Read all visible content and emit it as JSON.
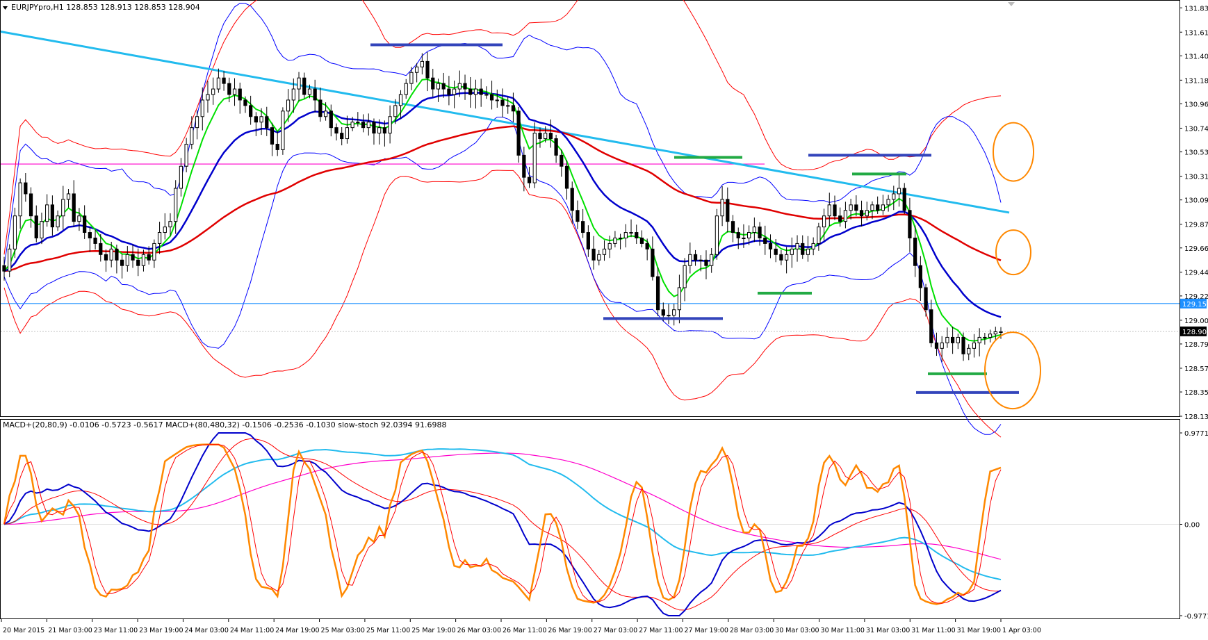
{
  "window": {
    "symbol_header": "EURJPYpro,H1  128.853 128.913 128.853 128.904",
    "dropdown_icon": "triangle-down-icon"
  },
  "indicator_header": "MACD+(20,80,9) -0.0106 -0.5723 -0.5617   MACD+(80,480,32) -0.1506 -0.2536 -0.1030   slow-stoch 92.0394 91.6988",
  "colors": {
    "background": "#ffffff",
    "bull_candle": "#ffffff",
    "bear_candle": "#000000",
    "bollinger": "#0000ff",
    "envelope": "#ff0000",
    "ma_fast": "#00e000",
    "ma_mid": "#0000cc",
    "ma_slow": "#e00000",
    "trendline": "#22bbee",
    "support_line": "#1e90ff",
    "magenta_line": "#ff00cc",
    "annotation_blue": "#3344bb",
    "annotation_green": "#22aa44",
    "annotation_circle": "#ff8800",
    "stoch": "#ff8800"
  },
  "chart_data": [
    {
      "type": "candlestick",
      "symbol": "EURJPYpro",
      "timeframe": "H1",
      "ylim": [
        128.135,
        131.9
      ],
      "y_ticks": [
        "131.835",
        "131.615",
        "131.400",
        "131.180",
        "130.965",
        "130.745",
        "130.530",
        "130.310",
        "130.095",
        "129.875",
        "129.660",
        "129.440",
        "129.225",
        "129.005",
        "128.790",
        "128.570",
        "128.355",
        "128.135"
      ],
      "x_ticks": [
        "20 Mar 2015",
        "21 Mar 03:00",
        "23 Mar 11:00",
        "23 Mar 19:00",
        "24 Mar 03:00",
        "24 Mar 11:00",
        "24 Mar 19:00",
        "25 Mar 03:00",
        "25 Mar 11:00",
        "25 Mar 19:00",
        "26 Mar 03:00",
        "26 Mar 11:00",
        "26 Mar 19:00",
        "27 Mar 03:00",
        "27 Mar 11:00",
        "27 Mar 19:00",
        "28 Mar 03:00",
        "30 Mar 03:00",
        "30 Mar 11:00",
        "31 Mar 03:00",
        "31 Mar 11:00",
        "31 Mar 19:00",
        "1 Apr 03:00"
      ],
      "price_marker_level": "129.156",
      "current_price": "128.904",
      "close_path": [
        129.45,
        129.65,
        129.95,
        130.25,
        130.15,
        129.95,
        129.75,
        129.9,
        130.05,
        129.85,
        129.95,
        130.1,
        130.15,
        129.9,
        129.95,
        129.8,
        129.75,
        129.7,
        129.6,
        129.55,
        129.65,
        129.55,
        129.5,
        129.6,
        129.55,
        129.5,
        129.6,
        129.55,
        129.7,
        129.8,
        129.85,
        129.9,
        130.2,
        130.4,
        130.6,
        130.75,
        130.85,
        131.0,
        131.05,
        131.1,
        131.2,
        131.15,
        131.05,
        131.1,
        131.0,
        130.95,
        130.85,
        130.8,
        130.85,
        130.75,
        130.6,
        130.55,
        130.9,
        131.0,
        131.1,
        131.2,
        131.05,
        131.1,
        131.0,
        130.85,
        130.9,
        130.75,
        130.7,
        130.65,
        130.75,
        130.8,
        130.8,
        130.75,
        130.8,
        130.7,
        130.75,
        130.7,
        130.85,
        130.95,
        131.05,
        131.15,
        131.25,
        131.3,
        131.35,
        131.2,
        131.1,
        131.15,
        131.1,
        131.05,
        131.1,
        131.15,
        131.1,
        131.05,
        131.1,
        131.05,
        131.05,
        131.0,
        131.0,
        130.95,
        130.95,
        130.9,
        130.5,
        130.3,
        130.25,
        130.7,
        130.65,
        130.7,
        130.65,
        130.5,
        130.4,
        130.2,
        130.0,
        129.9,
        129.8,
        129.65,
        129.55,
        129.6,
        129.65,
        129.7,
        129.75,
        129.75,
        129.8,
        129.8,
        129.75,
        129.7,
        129.65,
        129.4,
        129.1,
        129.05,
        129.05,
        129.1,
        129.3,
        129.5,
        129.6,
        129.55,
        129.55,
        129.5,
        129.6,
        129.95,
        130.1,
        129.9,
        129.8,
        129.75,
        129.75,
        129.8,
        129.85,
        129.75,
        129.7,
        129.65,
        129.6,
        129.55,
        129.6,
        129.65,
        129.7,
        129.6,
        129.65,
        129.7,
        129.85,
        129.95,
        130.05,
        129.95,
        129.9,
        130.0,
        130.05,
        130.0,
        129.95,
        130.0,
        130.05,
        130.0,
        130.05,
        130.1,
        130.15,
        130.2,
        130.0,
        129.75,
        129.5,
        129.3,
        129.1,
        128.8,
        128.75,
        128.8,
        128.85,
        128.8,
        128.85,
        128.7,
        128.75,
        128.8,
        128.85,
        128.85,
        128.88,
        128.9,
        128.9
      ],
      "hourly_range": 0.16
    },
    {
      "type": "line",
      "name_pane": "MACD+ / slow-stoch",
      "ylim": [
        -0.9771,
        0.9771
      ],
      "y_ticks": [
        "0.9771",
        "0.00",
        "-0.9771"
      ]
    }
  ]
}
